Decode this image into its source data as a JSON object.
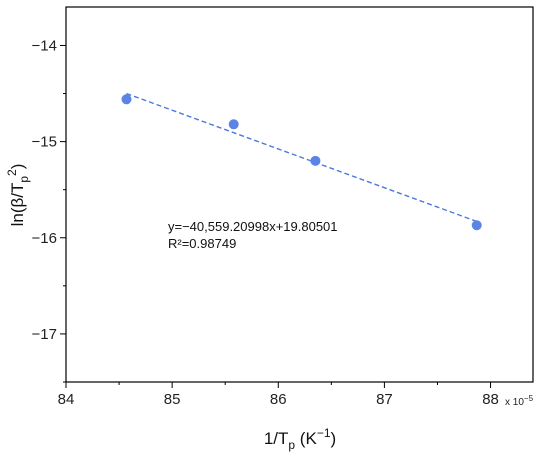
{
  "chart_data": {
    "type": "scatter",
    "title": "",
    "xlabel": {
      "base": "1/T",
      "sub": "p",
      "rest": " (K",
      "sup": "−1",
      "close": ")"
    },
    "ylabel": {
      "base": "ln(β/T",
      "sub": "p",
      "sup": "2",
      "close": ")"
    },
    "x_multiplier_label": "x 10",
    "x_multiplier_exp": "−5",
    "xlim": [
      84,
      88.4
    ],
    "ylim": [
      -17.5,
      -13.6
    ],
    "x_ticks": [
      84,
      85,
      86,
      87,
      88
    ],
    "x_tick_labels": [
      "84",
      "85",
      "86",
      "87",
      "88"
    ],
    "y_ticks": [
      -17,
      -16,
      -15,
      -14
    ],
    "y_tick_labels": [
      "−17",
      "−16",
      "−15",
      "−14"
    ],
    "grid": false,
    "points": [
      {
        "x": 84.57,
        "y": -14.56
      },
      {
        "x": 85.58,
        "y": -14.82
      },
      {
        "x": 86.35,
        "y": -15.2
      },
      {
        "x": 87.87,
        "y": -15.87
      }
    ],
    "fit_line": {
      "x": [
        84.57,
        87.87
      ],
      "y": [
        -14.5,
        -15.83
      ]
    },
    "annotation": [
      "y=−40,559.20998x+19.80501",
      "R²=0.98749"
    ],
    "colors": {
      "points": "#5b84e6",
      "fit": "#4a78dc",
      "axis": "#000000"
    }
  }
}
